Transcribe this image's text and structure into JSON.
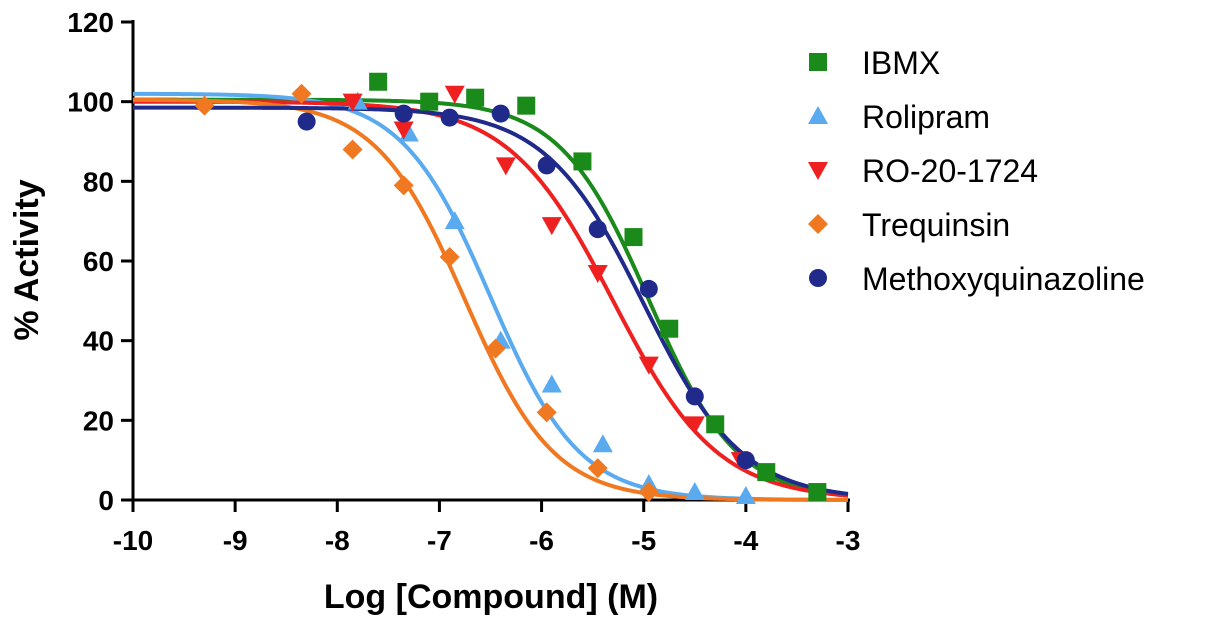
{
  "chart_data": {
    "type": "scatter",
    "title": "",
    "xlabel": "Log [Compound] (M)",
    "ylabel": "% Activity",
    "xlim": [
      -10,
      -3
    ],
    "ylim": [
      0,
      120
    ],
    "x_ticks": [
      -10,
      -9,
      -8,
      -7,
      -6,
      -5,
      -4,
      -3
    ],
    "y_ticks": [
      0,
      20,
      40,
      60,
      80,
      100,
      120
    ],
    "legend_position": "right",
    "series": [
      {
        "name": "IBMX",
        "color": "#1a8a1a",
        "marker": "square",
        "points": [
          {
            "x": -7.6,
            "y": 105
          },
          {
            "x": -7.1,
            "y": 100
          },
          {
            "x": -6.65,
            "y": 101
          },
          {
            "x": -6.15,
            "y": 99
          },
          {
            "x": -5.6,
            "y": 85
          },
          {
            "x": -5.1,
            "y": 66
          },
          {
            "x": -4.75,
            "y": 43
          },
          {
            "x": -4.3,
            "y": 19
          },
          {
            "x": -3.8,
            "y": 7
          },
          {
            "x": -3.3,
            "y": 2
          }
        ],
        "fit": {
          "top": 100.5,
          "bottom": 0,
          "logIC50": -4.95,
          "hill": 1.0
        }
      },
      {
        "name": "Rolipram",
        "color": "#5aaaf0",
        "marker": "triangle-up",
        "points": [
          {
            "x": -7.8,
            "y": 100
          },
          {
            "x": -7.3,
            "y": 92
          },
          {
            "x": -6.85,
            "y": 70
          },
          {
            "x": -6.4,
            "y": 40
          },
          {
            "x": -5.9,
            "y": 29
          },
          {
            "x": -5.4,
            "y": 14
          },
          {
            "x": -4.95,
            "y": 4
          },
          {
            "x": -4.5,
            "y": 2
          },
          {
            "x": -4.0,
            "y": 1
          }
        ],
        "fit": {
          "top": 102,
          "bottom": 0,
          "logIC50": -6.5,
          "hill": 1.0
        }
      },
      {
        "name": "RO-20-1724",
        "color": "#ee2020",
        "marker": "triangle-down",
        "points": [
          {
            "x": -7.85,
            "y": 100
          },
          {
            "x": -7.35,
            "y": 93
          },
          {
            "x": -6.85,
            "y": 102
          },
          {
            "x": -6.35,
            "y": 84
          },
          {
            "x": -5.9,
            "y": 69
          },
          {
            "x": -5.45,
            "y": 57
          },
          {
            "x": -4.95,
            "y": 34
          },
          {
            "x": -4.5,
            "y": 19
          },
          {
            "x": -4.05,
            "y": 10
          }
        ],
        "fit": {
          "top": 100,
          "bottom": 0,
          "logIC50": -5.3,
          "hill": 0.85
        }
      },
      {
        "name": "Trequinsin",
        "color": "#f07820",
        "marker": "diamond",
        "points": [
          {
            "x": -9.3,
            "y": 99
          },
          {
            "x": -8.35,
            "y": 102
          },
          {
            "x": -7.85,
            "y": 88
          },
          {
            "x": -7.35,
            "y": 79
          },
          {
            "x": -6.9,
            "y": 61
          },
          {
            "x": -6.45,
            "y": 38
          },
          {
            "x": -5.95,
            "y": 22
          },
          {
            "x": -5.45,
            "y": 8
          },
          {
            "x": -4.95,
            "y": 2
          }
        ],
        "fit": {
          "top": 100.5,
          "bottom": 0,
          "logIC50": -6.75,
          "hill": 1.0
        }
      },
      {
        "name": "Methoxyquinazoline",
        "color": "#1f2a8a",
        "marker": "circle",
        "points": [
          {
            "x": -8.3,
            "y": 95
          },
          {
            "x": -7.35,
            "y": 97
          },
          {
            "x": -6.9,
            "y": 96
          },
          {
            "x": -6.4,
            "y": 97
          },
          {
            "x": -5.95,
            "y": 84
          },
          {
            "x": -5.45,
            "y": 68
          },
          {
            "x": -4.95,
            "y": 53
          },
          {
            "x": -4.5,
            "y": 26
          },
          {
            "x": -4.0,
            "y": 10
          }
        ],
        "fit": {
          "top": 98.5,
          "bottom": 0,
          "logIC50": -5.0,
          "hill": 0.9
        }
      }
    ]
  }
}
